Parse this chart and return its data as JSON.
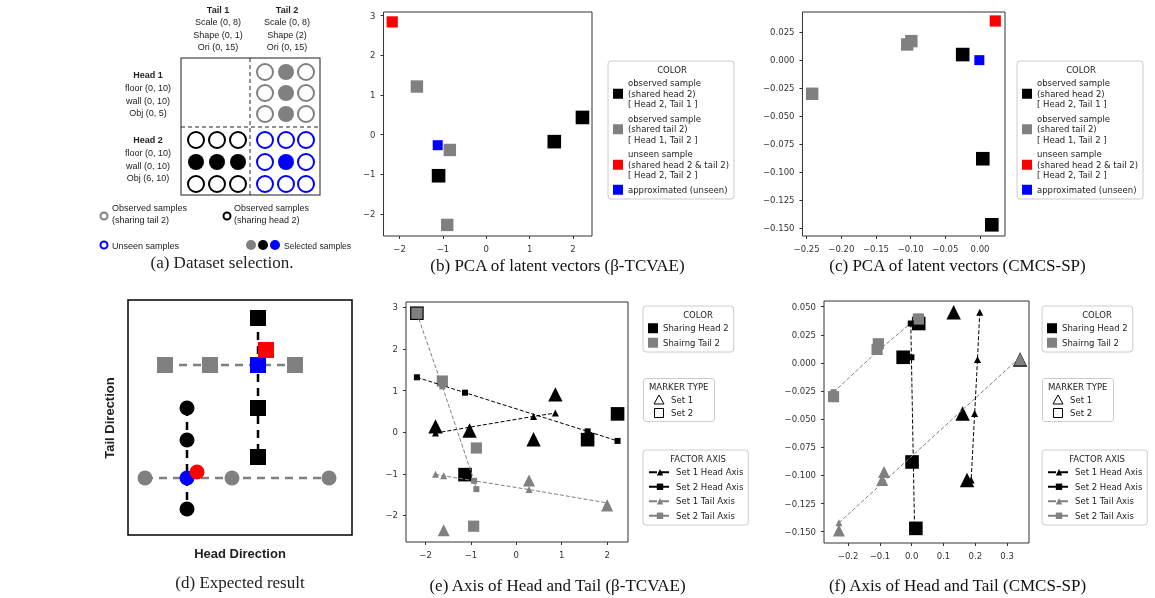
{
  "chart_data": [
    {
      "type": "other",
      "title": "(a) Dataset selection.",
      "annotations": [
        "Tail 1",
        "Scale (0, 8)\nShape (0, 1)\nOri (0, 15)",
        "Tail 2",
        "Scale (0, 8)\nShape (2)\nOri (0, 15)",
        "Head 1",
        "floor (0, 10)\nwall (0, 10)\nObj (0, 5)",
        "Head 2",
        "floor (0, 10)\nwall (0, 10)\nObj (6, 10)",
        "Observed samples\n(sharing tail 2)",
        "Observed samples\n(sharing head 2)",
        "Unseen samples",
        "Selected samples"
      ]
    },
    {
      "type": "scatter",
      "title": "(b) PCA of latent vectors (β-TCVAE)",
      "legend_title": "COLOR",
      "legend": "right",
      "marker": "square",
      "xlim": [
        -2.37,
        2.44
      ],
      "xticks": [
        -2,
        -1,
        0,
        1,
        2
      ],
      "ylim": [
        -2.56,
        3.09
      ],
      "yticks": [
        -2,
        -1,
        0,
        1,
        2,
        3
      ],
      "series": [
        {
          "name": "observed sample\n(shared head 2)\n[ Head 2, Tail 1 ]",
          "color": "#000000",
          "x": [
            -1.1,
            1.57,
            2.22
          ],
          "values": [
            -1.04,
            -0.18,
            0.43
          ]
        },
        {
          "name": "observed sample\n(shared tail 2)\n[ Head 1, Tail 2 ]",
          "color": "#808080",
          "x": [
            -1.6,
            -0.84,
            -0.9
          ],
          "values": [
            1.21,
            -0.39,
            -2.28
          ]
        },
        {
          "name": "unseen sample\n(shared head 2 & tail 2)\n[ Head 2, Tail 2 ]",
          "color": "#ff0000",
          "x": [
            -2.17
          ],
          "values": [
            2.84
          ]
        },
        {
          "name": "approximated (unseen)",
          "color": "#0000ff",
          "x": [
            -1.12
          ],
          "values": [
            -0.27
          ]
        }
      ]
    },
    {
      "type": "scatter",
      "title": "(c) PCA of latent vectors (CMCS-SP)",
      "legend_title": "COLOR",
      "legend": "right",
      "marker": "square",
      "xlim": [
        -0.256,
        0.036
      ],
      "xticks": [
        {
          "value": -0.25,
          "label": "−0.25"
        },
        {
          "value": -0.2,
          "label": "−0.20"
        },
        {
          "value": -0.15,
          "label": "−0.15"
        },
        {
          "value": -0.1,
          "label": "−0.10"
        },
        {
          "value": -0.05,
          "label": "−0.05"
        },
        {
          "value": 0,
          "label": "0.00"
        }
      ],
      "ylim": [
        -0.157,
        0.043
      ],
      "yticks": [
        {
          "value": -0.15,
          "label": "−0.150"
        },
        {
          "value": -0.125,
          "label": "−0.125"
        },
        {
          "value": -0.1,
          "label": "−0.100"
        },
        {
          "value": -0.075,
          "label": "−0.075"
        },
        {
          "value": -0.05,
          "label": "−0.050"
        },
        {
          "value": -0.025,
          "label": "−0.025"
        },
        {
          "value": 0,
          "label": "0.000"
        },
        {
          "value": 0.025,
          "label": "0.025"
        }
      ],
      "series": [
        {
          "name": "observed sample\n(shared head 2)\n[ Head 2, Tail 1 ]",
          "color": "#000000",
          "x": [
            -0.025,
            0.004,
            0.017
          ],
          "values": [
            0.005,
            -0.088,
            -0.147
          ]
        },
        {
          "name": "observed sample\n(shared tail 2)\n[ Head 1, Tail 2 ]",
          "color": "#808080",
          "x": [
            -0.105,
            -0.099,
            -0.242
          ],
          "values": [
            0.014,
            0.017,
            -0.03
          ]
        },
        {
          "name": "unseen sample\n(shared head 2 & tail 2)\n[ Head 2, Tail 2 ]",
          "color": "#ff0000",
          "x": [
            0.022
          ],
          "values": [
            0.035
          ]
        },
        {
          "name": "approximated (unseen)",
          "color": "#0000ff",
          "x": [
            -0.001
          ],
          "values": [
            0.0
          ]
        }
      ]
    },
    {
      "type": "other",
      "title": "(d) Expected result",
      "xlabel": "Head Direction",
      "ylabel": "Tail Direction"
    },
    {
      "type": "scatter",
      "title": "(e) Axis of Head and Tail (β-TCVAE)",
      "legend_title": "COLOR",
      "legend": "right",
      "annotations": [
        "MARKER TYPE",
        "Set 1",
        "Set 2",
        "FACTOR AXIS"
      ],
      "xlim": [
        -2.43,
        2.46
      ],
      "xticks": [
        -2,
        -1,
        0,
        1,
        2
      ],
      "ylim": [
        -2.64,
        3.13
      ],
      "yticks": [
        -2,
        -1,
        0,
        1,
        2,
        3
      ],
      "series": [
        {
          "name": "Sharing Head 2",
          "type": "scatter",
          "marker": "square",
          "color": "#000000",
          "x": [
            -2.19,
            -1.13,
            1.57,
            2.23
          ],
          "values": [
            2.86,
            -1.02,
            -0.18,
            0.44
          ]
        },
        {
          "type": "scatter",
          "marker": "triangle",
          "color": "#000000",
          "x": [
            -1.78,
            -1.03,
            0.86,
            0.38
          ],
          "values": [
            0.14,
            0.04,
            0.91,
            -0.17
          ]
        },
        {
          "name": "Shairng Tail 2",
          "type": "scatter",
          "marker": "square",
          "color": "#808080",
          "x": [
            -2.19,
            -1.63,
            -0.88,
            -0.94
          ],
          "values": [
            2.86,
            1.23,
            -0.38,
            -2.26
          ]
        },
        {
          "type": "scatter",
          "marker": "triangle",
          "color": "#808080",
          "x": [
            -1.6,
            0.28,
            2.0
          ],
          "values": [
            -2.36,
            -1.16,
            -1.76
          ]
        },
        {
          "name": "Set 1 Head Axis",
          "type": "line",
          "marker": "triangle",
          "line_style": "dashed",
          "color": "#000000",
          "x": [
            -1.78,
            0.38,
            0.86
          ],
          "values": [
            -0.02,
            0.38,
            0.46
          ]
        },
        {
          "name": "Set 2 Head Axis",
          "type": "line",
          "marker": "square",
          "line_style": "dashed",
          "color": "#000000",
          "x": [
            -2.19,
            -1.13,
            1.57,
            2.23
          ],
          "values": [
            1.32,
            0.95,
            0.02,
            -0.21
          ]
        },
        {
          "name": "Set 1 Tail Axis",
          "type": "line",
          "marker": "triangle",
          "line_style": "dashed",
          "color": "#808080",
          "x": [
            -1.78,
            -1.6,
            0.28,
            2.0
          ],
          "values": [
            -1.01,
            -1.05,
            -1.38,
            -1.7
          ]
        },
        {
          "name": "Set 2 Tail Axis",
          "type": "line",
          "marker": "square",
          "line_style": "dashed",
          "color": "#808080",
          "x": [
            -2.19,
            -1.63,
            -0.93,
            -0.88
          ],
          "values": [
            2.86,
            1.1,
            -1.17,
            -1.37
          ]
        }
      ]
    },
    {
      "type": "scatter",
      "title": "(f) Axis of Head and Tail (CMCS-SP)",
      "legend_title": "COLOR",
      "legend": "right",
      "annotations": [
        "MARKER TYPE",
        "Set 1",
        "Set 2",
        "FACTOR AXIS"
      ],
      "xlim": [
        -0.276,
        0.369
      ],
      "xticks": [
        {
          "value": -0.2,
          "label": "−0.2"
        },
        {
          "value": -0.1,
          "label": "−0.1"
        },
        {
          "value": 0,
          "label": "0.0"
        },
        {
          "value": 0.1,
          "label": "0.1"
        },
        {
          "value": 0.2,
          "label": "0.2"
        },
        {
          "value": 0.3,
          "label": "0.3"
        }
      ],
      "ylim": [
        -0.16,
        0.055
      ],
      "yticks": [
        {
          "value": -0.15,
          "label": "−0.150"
        },
        {
          "value": -0.125,
          "label": "−0.125"
        },
        {
          "value": -0.1,
          "label": "−0.100"
        },
        {
          "value": -0.075,
          "label": "−0.075"
        },
        {
          "value": -0.05,
          "label": "−0.050"
        },
        {
          "value": -0.025,
          "label": "−0.025"
        },
        {
          "value": 0,
          "label": "0.000"
        },
        {
          "value": 0.025,
          "label": "0.025"
        },
        {
          "value": 0.05,
          "label": "0.050"
        }
      ],
      "series": [
        {
          "name": "Sharing Head 2",
          "type": "scatter",
          "marker": "square",
          "color": "#000000",
          "x": [
            -0.027,
            0.001,
            0.013,
            0.022
          ],
          "values": [
            0.005,
            -0.088,
            -0.147,
            0.035
          ]
        },
        {
          "type": "scatter",
          "marker": "triangle",
          "color": "#000000",
          "x": [
            0.132,
            0.16,
            0.174,
            0.341
          ],
          "values": [
            0.045,
            -0.045,
            -0.104,
            0.003
          ]
        },
        {
          "name": "Shairng Tail 2",
          "type": "scatter",
          "marker": "square",
          "color": "#808080",
          "x": [
            -0.105,
            -0.109,
            -0.246,
            0.021
          ],
          "values": [
            0.017,
            0.012,
            -0.03,
            0.039
          ]
        },
        {
          "type": "scatter",
          "marker": "triangle",
          "color": "#808080",
          "x": [
            0.341,
            -0.087,
            -0.093,
            -0.229
          ],
          "values": [
            0.003,
            -0.097,
            -0.104,
            -0.149
          ]
        },
        {
          "name": "Set 1 Head Axis",
          "type": "line",
          "marker": "triangle",
          "line_style": "dashed",
          "color": "#000000",
          "x": [
            0.214,
            0.207,
            0.198,
            0.187
          ],
          "values": [
            0.045,
            0.003,
            -0.045,
            -0.104
          ]
        },
        {
          "name": "Set 2 Head Axis",
          "type": "line",
          "marker": "square",
          "line_style": "dashed",
          "color": "#000000",
          "x": [
            -0.003,
            -0.001,
            0.005,
            0.009
          ],
          "values": [
            0.035,
            0.005,
            -0.088,
            -0.147
          ]
        },
        {
          "name": "Set 1 Tail Axis",
          "type": "line",
          "marker": "triangle",
          "line_style": "dashed",
          "color": "#808080",
          "x": [
            -0.229,
            0.341
          ],
          "values": [
            -0.142,
            0.005
          ]
        },
        {
          "name": "Set 2 Tail Axis",
          "type": "line",
          "marker": "square",
          "line_style": "dashed",
          "color": "#808080",
          "x": [
            -0.246,
            -0.109,
            0.021
          ],
          "values": [
            -0.026,
            0.01,
            0.041
          ]
        }
      ]
    }
  ]
}
